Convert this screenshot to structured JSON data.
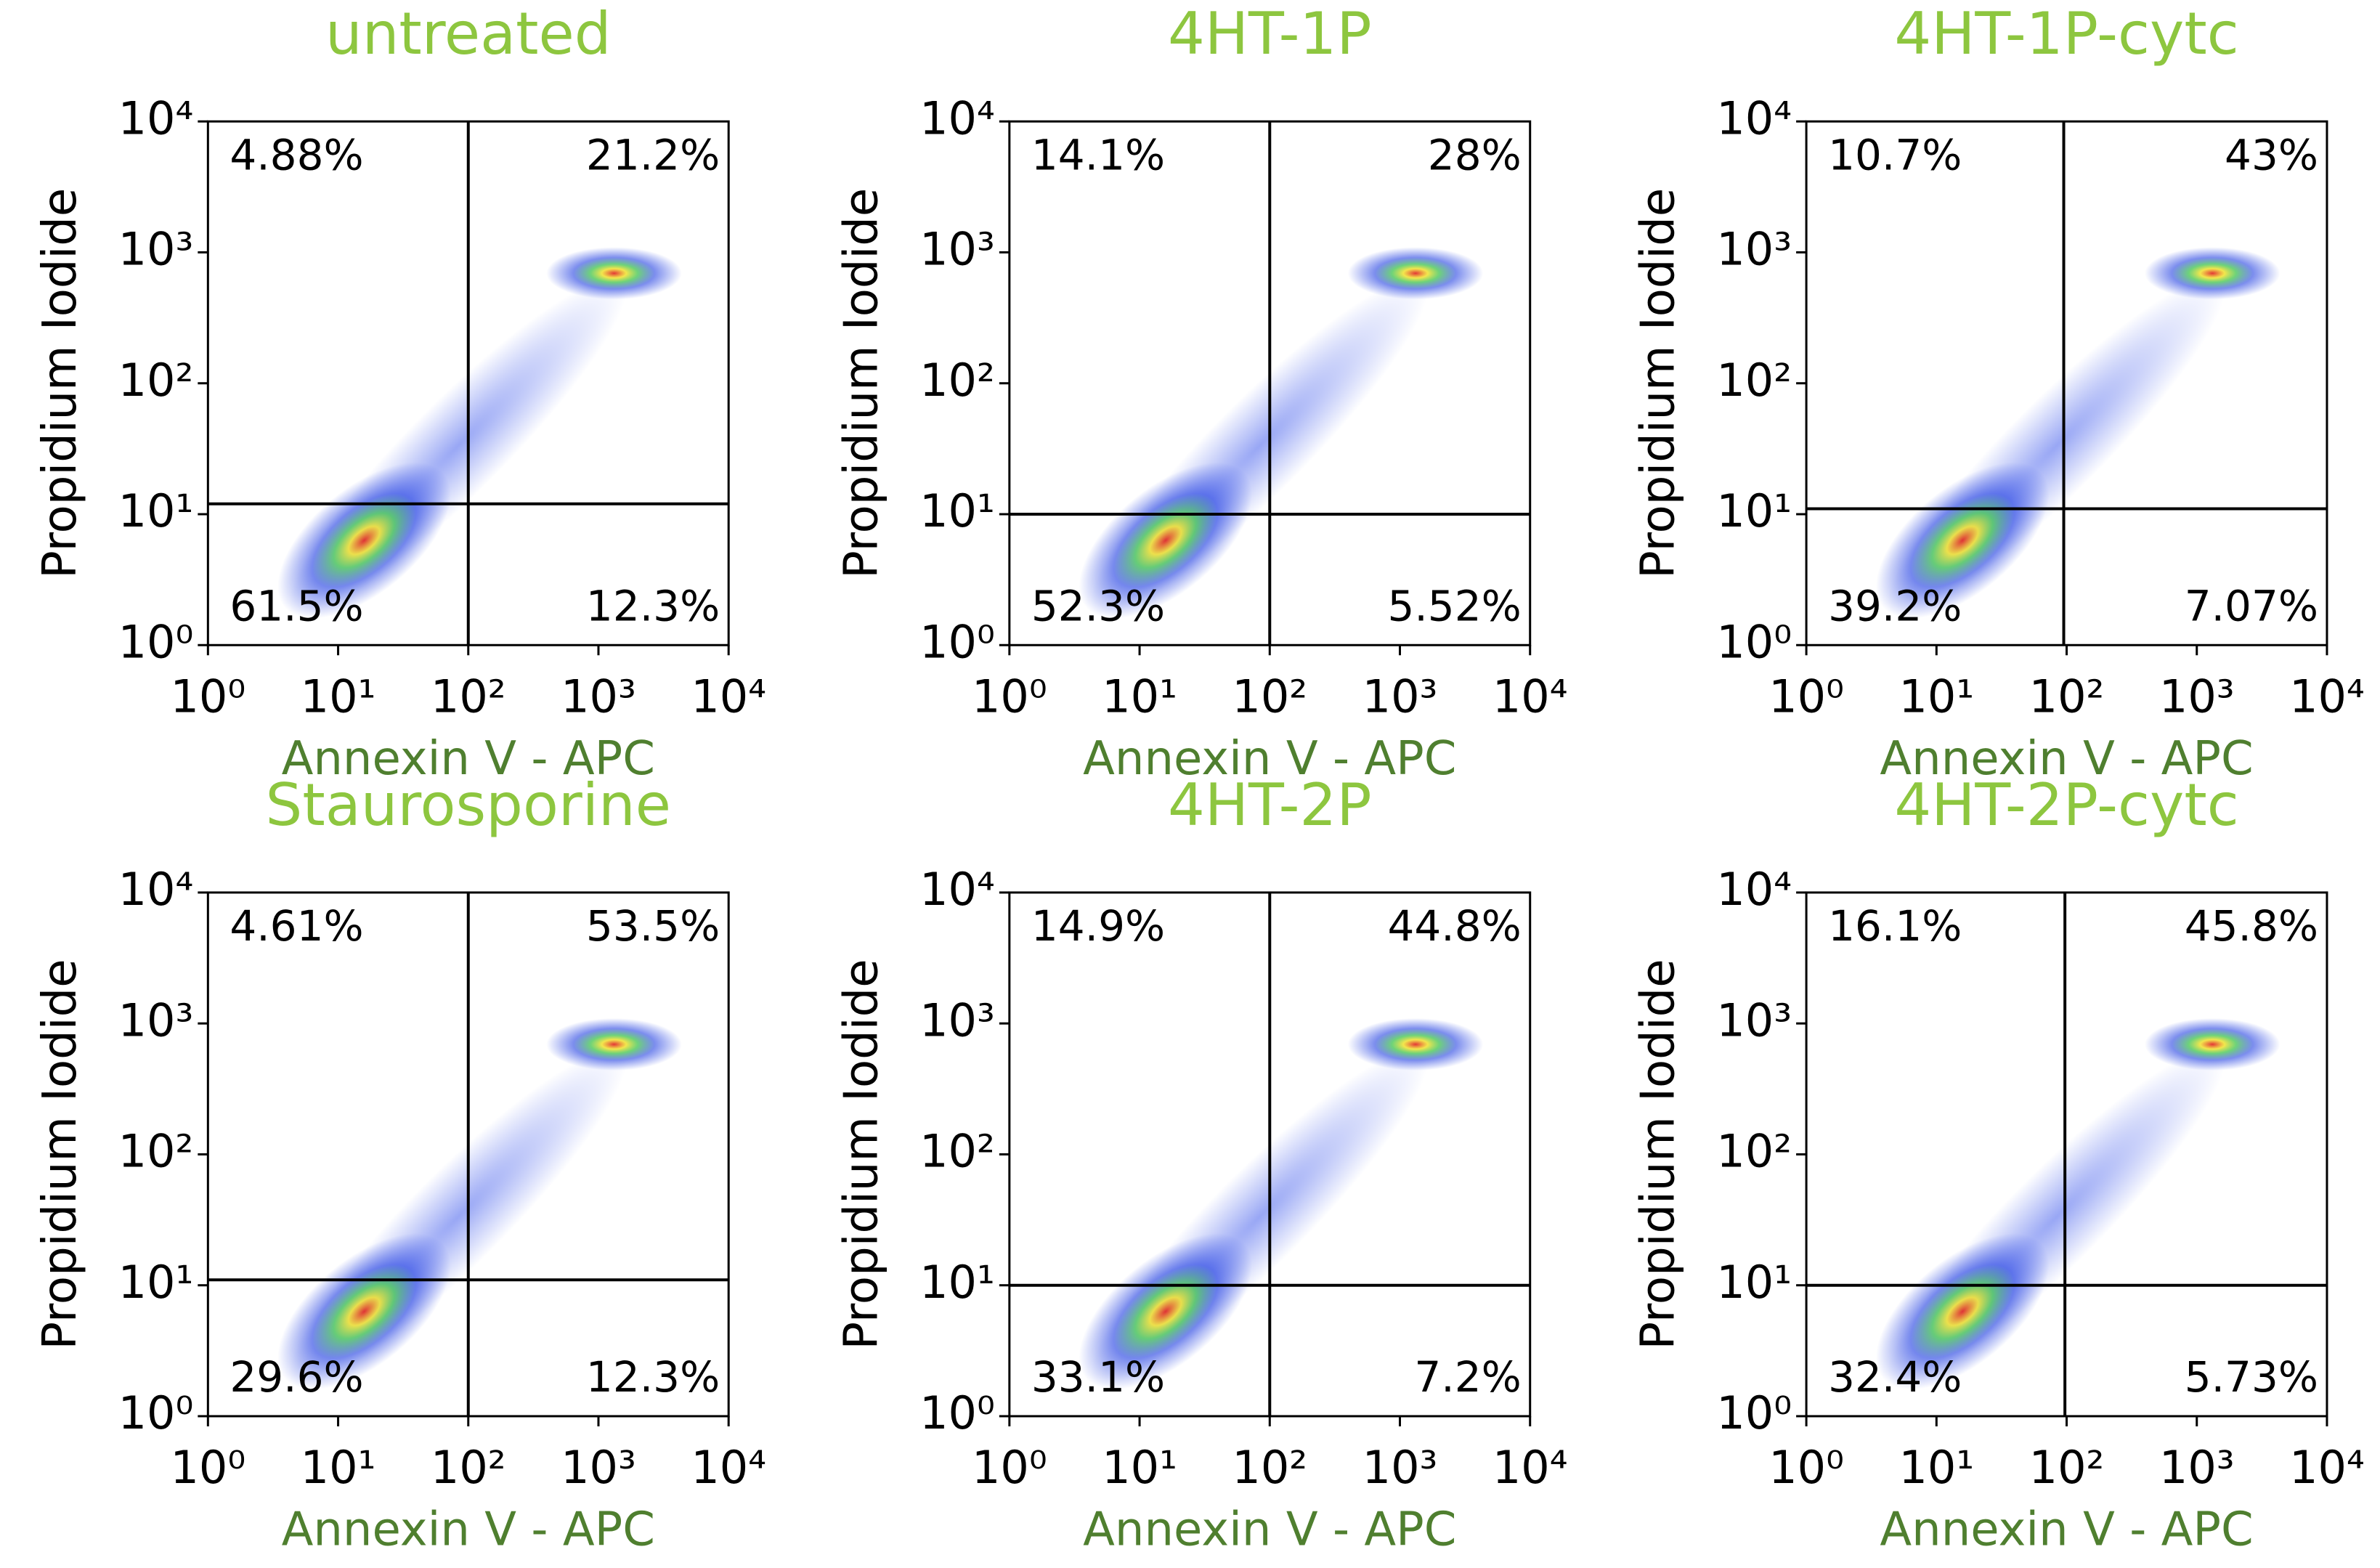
{
  "chart_data": [
    {
      "type": "scatter",
      "title": "untreated",
      "xlabel": "Annexin V - APC",
      "ylabel": "Propidium Iodide",
      "log_scale": true,
      "xlim": [
        1,
        10000
      ],
      "ylim": [
        1,
        10000
      ],
      "xticks": [
        {
          "value": 1,
          "label": "10⁰"
        },
        {
          "value": 10,
          "label": "10¹"
        },
        {
          "value": 100,
          "label": "10²"
        },
        {
          "value": 1000,
          "label": "10³"
        },
        {
          "value": 10000,
          "label": "10⁴"
        }
      ],
      "yticks": [
        {
          "value": 1,
          "label": "10⁰"
        },
        {
          "value": 10,
          "label": "10¹"
        },
        {
          "value": 100,
          "label": "10²"
        },
        {
          "value": 1000,
          "label": "10³"
        },
        {
          "value": 10000,
          "label": "10⁴"
        }
      ],
      "gates": {
        "x": 100,
        "y": 12
      },
      "quadrants": {
        "values": [
          4.88,
          21.2,
          61.5,
          12.3
        ],
        "value_labels": [
          "4.88%",
          "21.2%",
          "61.5%",
          "12.3%"
        ]
      }
    },
    {
      "type": "scatter",
      "title": "4HT-1P",
      "xlabel": "Annexin V - APC",
      "ylabel": "Propidium Iodide",
      "log_scale": true,
      "xlim": [
        1,
        10000
      ],
      "ylim": [
        1,
        10000
      ],
      "xticks": [
        {
          "value": 1,
          "label": "10⁰"
        },
        {
          "value": 10,
          "label": "10¹"
        },
        {
          "value": 100,
          "label": "10²"
        },
        {
          "value": 1000,
          "label": "10³"
        },
        {
          "value": 10000,
          "label": "10⁴"
        }
      ],
      "yticks": [
        {
          "value": 1,
          "label": "10⁰"
        },
        {
          "value": 10,
          "label": "10¹"
        },
        {
          "value": 100,
          "label": "10²"
        },
        {
          "value": 1000,
          "label": "10³"
        },
        {
          "value": 10000,
          "label": "10⁴"
        }
      ],
      "gates": {
        "x": 100,
        "y": 10
      },
      "quadrants": {
        "values": [
          14.1,
          28,
          52.3,
          5.52
        ],
        "value_labels": [
          "14.1%",
          "28%",
          "52.3%",
          "5.52%"
        ]
      }
    },
    {
      "type": "scatter",
      "title": "4HT-1P-cytc",
      "xlabel": "Annexin V - APC",
      "ylabel": "Propidium Iodide",
      "log_scale": true,
      "xlim": [
        1,
        10000
      ],
      "ylim": [
        1,
        10000
      ],
      "xticks": [
        {
          "value": 1,
          "label": "10⁰"
        },
        {
          "value": 10,
          "label": "10¹"
        },
        {
          "value": 100,
          "label": "10²"
        },
        {
          "value": 1000,
          "label": "10³"
        },
        {
          "value": 10000,
          "label": "10⁴"
        }
      ],
      "yticks": [
        {
          "value": 1,
          "label": "10⁰"
        },
        {
          "value": 10,
          "label": "10¹"
        },
        {
          "value": 100,
          "label": "10²"
        },
        {
          "value": 1000,
          "label": "10³"
        },
        {
          "value": 10000,
          "label": "10⁴"
        }
      ],
      "gates": {
        "x": 95,
        "y": 11
      },
      "quadrants": {
        "values": [
          10.7,
          43,
          39.2,
          7.07
        ],
        "value_labels": [
          "10.7%",
          "43%",
          "39.2%",
          "7.07%"
        ]
      }
    },
    {
      "type": "scatter",
      "title": "Staurosporine",
      "xlabel": "Annexin V - APC",
      "ylabel": "Propidium Iodide",
      "log_scale": true,
      "xlim": [
        1,
        10000
      ],
      "ylim": [
        1,
        10000
      ],
      "xticks": [
        {
          "value": 1,
          "label": "10⁰"
        },
        {
          "value": 10,
          "label": "10¹"
        },
        {
          "value": 100,
          "label": "10²"
        },
        {
          "value": 1000,
          "label": "10³"
        },
        {
          "value": 10000,
          "label": "10⁴"
        }
      ],
      "yticks": [
        {
          "value": 1,
          "label": "10⁰"
        },
        {
          "value": 10,
          "label": "10¹"
        },
        {
          "value": 100,
          "label": "10²"
        },
        {
          "value": 1000,
          "label": "10³"
        },
        {
          "value": 10000,
          "label": "10⁴"
        }
      ],
      "gates": {
        "x": 100,
        "y": 11
      },
      "quadrants": {
        "values": [
          4.61,
          53.5,
          29.6,
          12.3
        ],
        "value_labels": [
          "4.61%",
          "53.5%",
          "29.6%",
          "12.3%"
        ]
      }
    },
    {
      "type": "scatter",
      "title": "4HT-2P",
      "xlabel": "Annexin V - APC",
      "ylabel": "Propidium Iodide",
      "log_scale": true,
      "xlim": [
        1,
        10000
      ],
      "ylim": [
        1,
        10000
      ],
      "xticks": [
        {
          "value": 1,
          "label": "10⁰"
        },
        {
          "value": 10,
          "label": "10¹"
        },
        {
          "value": 100,
          "label": "10²"
        },
        {
          "value": 1000,
          "label": "10³"
        },
        {
          "value": 10000,
          "label": "10⁴"
        }
      ],
      "yticks": [
        {
          "value": 1,
          "label": "10⁰"
        },
        {
          "value": 10,
          "label": "10¹"
        },
        {
          "value": 100,
          "label": "10²"
        },
        {
          "value": 1000,
          "label": "10³"
        },
        {
          "value": 10000,
          "label": "10⁴"
        }
      ],
      "gates": {
        "x": 100,
        "y": 10
      },
      "quadrants": {
        "values": [
          14.9,
          44.8,
          33.1,
          7.2
        ],
        "value_labels": [
          "14.9%",
          "44.8%",
          "33.1%",
          "7.2%"
        ]
      }
    },
    {
      "type": "scatter",
      "title": "4HT-2P-cytc",
      "xlabel": "Annexin V - APC",
      "ylabel": "Propidium Iodide",
      "log_scale": true,
      "xlim": [
        1,
        10000
      ],
      "ylim": [
        1,
        10000
      ],
      "xticks": [
        {
          "value": 1,
          "label": "10⁰"
        },
        {
          "value": 10,
          "label": "10¹"
        },
        {
          "value": 100,
          "label": "10²"
        },
        {
          "value": 1000,
          "label": "10³"
        },
        {
          "value": 10000,
          "label": "10⁴"
        }
      ],
      "yticks": [
        {
          "value": 1,
          "label": "10⁰"
        },
        {
          "value": 10,
          "label": "10¹"
        },
        {
          "value": 100,
          "label": "10²"
        },
        {
          "value": 1000,
          "label": "10³"
        },
        {
          "value": 10000,
          "label": "10⁴"
        }
      ],
      "gates": {
        "x": 97,
        "y": 10
      },
      "quadrants": {
        "values": [
          16.1,
          45.8,
          32.4,
          5.73
        ],
        "value_labels": [
          "16.1%",
          "45.8%",
          "32.4%",
          "5.73%"
        ]
      }
    }
  ]
}
